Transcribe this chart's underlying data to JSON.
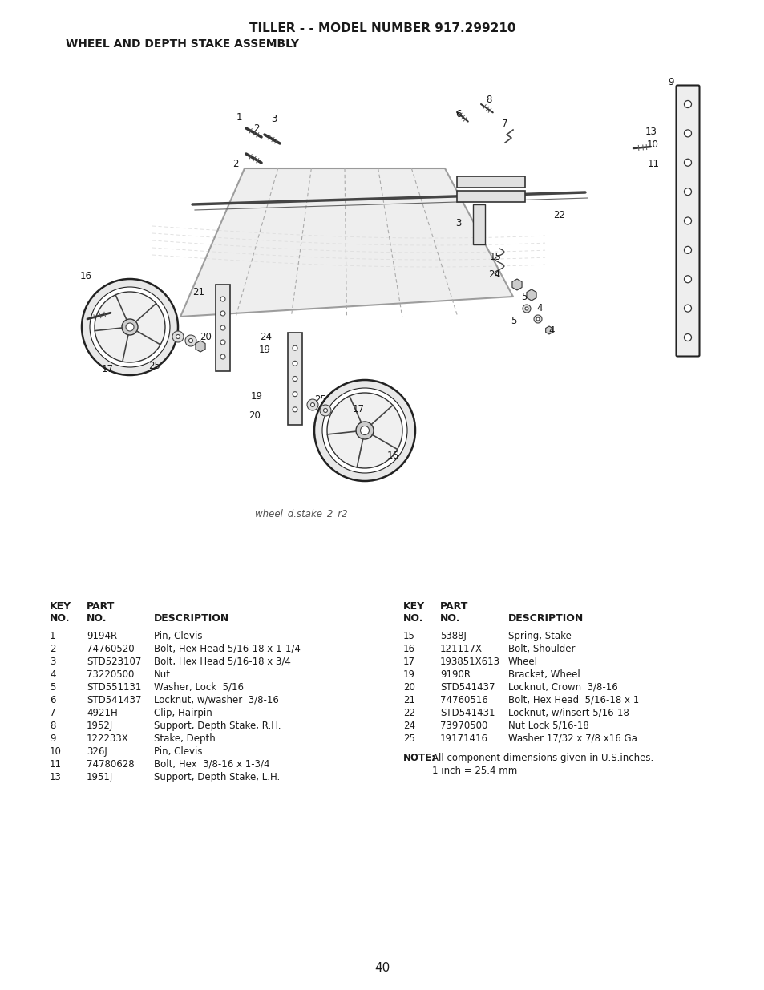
{
  "title_line1": "TILLER - - MODEL NUMBER 917.299210",
  "title_line2": "WHEEL AND DEPTH STAKE ASSEMBLY",
  "diagram_label": "wheel_d.stake_2_r2",
  "page_number": "40",
  "bg": "#ffffff",
  "tc": "#1a1a1a",
  "parts_left": [
    [
      "1",
      "9194R",
      "Pin, Clevis"
    ],
    [
      "2",
      "74760520",
      "Bolt, Hex Head 5/16-18 x 1-1/4"
    ],
    [
      "3",
      "STD523107",
      "Bolt, Hex Head 5/16-18 x 3/4"
    ],
    [
      "4",
      "73220500",
      "Nut"
    ],
    [
      "5",
      "STD551131",
      "Washer, Lock  5/16"
    ],
    [
      "6",
      "STD541437",
      "Locknut, w/washer  3/8-16"
    ],
    [
      "7",
      "4921H",
      "Clip, Hairpin"
    ],
    [
      "8",
      "1952J",
      "Support, Depth Stake, R.H."
    ],
    [
      "9",
      "122233X",
      "Stake, Depth"
    ],
    [
      "10",
      "326J",
      "Pin, Clevis"
    ],
    [
      "11",
      "74780628",
      "Bolt, Hex  3/8-16 x 1-3/4"
    ],
    [
      "13",
      "1951J",
      "Support, Depth Stake, L.H."
    ]
  ],
  "parts_right": [
    [
      "15",
      "5388J",
      "Spring, Stake"
    ],
    [
      "16",
      "121117X",
      "Bolt, Shoulder"
    ],
    [
      "17",
      "193851X613",
      "Wheel"
    ],
    [
      "19",
      "9190R",
      "Bracket, Wheel"
    ],
    [
      "20",
      "STD541437",
      "Locknut, Crown  3/8-16"
    ],
    [
      "21",
      "74760516",
      "Bolt, Hex Head  5/16-18 x 1"
    ],
    [
      "22",
      "STD541431",
      "Locknut, w/insert 5/16-18"
    ],
    [
      "24",
      "73970500",
      "Nut Lock 5/16-18"
    ],
    [
      "25",
      "19171416",
      "Washer 17/32 x 7/8 x16 Ga."
    ]
  ]
}
